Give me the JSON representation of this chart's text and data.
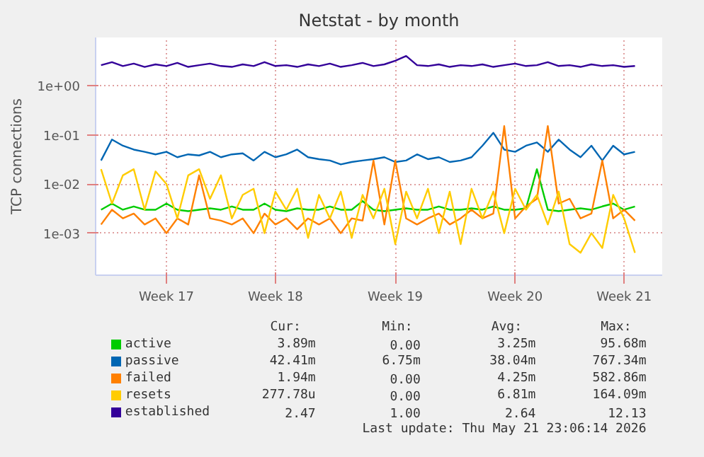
{
  "chart_data": {
    "type": "line",
    "title": "Netstat - by month",
    "ylabel": "TCP connections",
    "log": "y",
    "grid": true,
    "legend": "bottom",
    "categories": [
      null,
      null,
      null,
      null,
      null,
      null,
      "Week 17",
      null,
      null,
      null,
      null,
      null,
      null,
      null,
      null,
      null,
      "Week 18",
      null,
      null,
      null,
      null,
      null,
      null,
      null,
      null,
      null,
      null,
      "Week 19",
      null,
      null,
      null,
      null,
      null,
      null,
      null,
      null,
      null,
      null,
      "Week 20",
      null,
      null,
      null,
      null,
      null,
      null,
      null,
      null,
      null,
      "Week 21",
      null
    ],
    "ylim": [
      0.00014,
      9.5
    ],
    "yticks": [
      {
        "value": 0.001,
        "label": "1e-03"
      },
      {
        "value": 0.01,
        "label": "1e-02"
      },
      {
        "value": 0.1,
        "label": "1e-01"
      },
      {
        "value": 1,
        "label": "1e+00"
      }
    ],
    "series": [
      {
        "name": "active",
        "color": "#00cc00",
        "values": [
          0.003,
          0.004,
          0.003,
          0.0035,
          0.003,
          0.003,
          0.004,
          0.003,
          0.0028,
          0.003,
          0.0032,
          0.003,
          0.0035,
          0.003,
          0.003,
          0.004,
          0.003,
          0.0028,
          0.0032,
          0.003,
          0.003,
          0.0035,
          0.003,
          0.003,
          0.0045,
          0.003,
          0.0028,
          0.003,
          0.0032,
          0.003,
          0.003,
          0.0035,
          0.003,
          0.003,
          0.0032,
          0.003,
          0.0035,
          0.003,
          0.003,
          0.0032,
          0.02,
          0.003,
          0.0028,
          0.003,
          0.0032,
          0.003,
          0.0035,
          0.004,
          0.003,
          0.0035
        ]
      },
      {
        "name": "passive",
        "color": "#0066b3",
        "values": [
          0.03,
          0.08,
          0.06,
          0.05,
          0.045,
          0.04,
          0.045,
          0.035,
          0.04,
          0.038,
          0.045,
          0.035,
          0.04,
          0.042,
          0.03,
          0.045,
          0.035,
          0.04,
          0.05,
          0.035,
          0.032,
          0.03,
          0.025,
          0.028,
          0.03,
          0.032,
          0.035,
          0.028,
          0.03,
          0.04,
          0.032,
          0.035,
          0.028,
          0.03,
          0.035,
          0.06,
          0.11,
          0.05,
          0.045,
          0.06,
          0.07,
          0.045,
          0.08,
          0.05,
          0.035,
          0.06,
          0.03,
          0.06,
          0.04,
          0.045
        ]
      },
      {
        "name": "failed",
        "color": "#ff8000",
        "values": [
          0.0015,
          0.003,
          0.002,
          0.0025,
          0.0015,
          0.002,
          0.001,
          0.002,
          0.0015,
          0.015,
          0.002,
          0.0018,
          0.0015,
          0.002,
          0.001,
          0.0025,
          0.0015,
          0.002,
          0.0012,
          0.002,
          0.0015,
          0.002,
          0.001,
          0.002,
          0.0018,
          0.03,
          0.0015,
          0.03,
          0.002,
          0.0015,
          0.002,
          0.0025,
          0.0015,
          0.002,
          0.003,
          0.002,
          0.0025,
          0.15,
          0.002,
          0.0035,
          0.005,
          0.15,
          0.004,
          0.005,
          0.002,
          0.0025,
          0.03,
          0.002,
          0.003,
          0.0018
        ]
      },
      {
        "name": "resets",
        "color": "#ffcc00",
        "values": [
          0.02,
          0.004,
          0.015,
          0.02,
          0.003,
          0.018,
          0.01,
          0.002,
          0.015,
          0.02,
          0.005,
          0.015,
          0.002,
          0.006,
          0.008,
          0.001,
          0.007,
          0.003,
          0.008,
          0.0008,
          0.006,
          0.002,
          0.007,
          0.0008,
          0.006,
          0.002,
          0.008,
          0.0006,
          0.007,
          0.002,
          0.008,
          0.001,
          0.007,
          0.0006,
          0.008,
          0.002,
          0.007,
          0.001,
          0.008,
          0.003,
          0.006,
          0.0015,
          0.007,
          0.0006,
          0.0004,
          0.001,
          0.0005,
          0.006,
          0.002,
          0.0004
        ]
      },
      {
        "name": "established",
        "color": "#330099",
        "values": [
          2.6,
          3.0,
          2.5,
          2.8,
          2.4,
          2.7,
          2.5,
          2.9,
          2.4,
          2.6,
          2.8,
          2.5,
          2.4,
          2.7,
          2.5,
          3.0,
          2.5,
          2.6,
          2.4,
          2.7,
          2.5,
          2.8,
          2.4,
          2.6,
          2.9,
          2.5,
          2.7,
          3.2,
          4.0,
          2.6,
          2.5,
          2.7,
          2.4,
          2.6,
          2.5,
          2.7,
          2.4,
          2.6,
          2.8,
          2.5,
          2.6,
          3.0,
          2.5,
          2.6,
          2.4,
          2.7,
          2.5,
          2.6,
          2.4,
          2.5
        ]
      }
    ],
    "annotations": [
      "Cur:",
      "Min:",
      "Avg:",
      "Max:",
      "3.89m",
      "0.00",
      "3.25m",
      "95.68m",
      "42.41m",
      "6.75m",
      "38.04m",
      "767.34m",
      "1.94m",
      "0.00",
      "4.25m",
      "582.86m",
      "277.78u",
      "0.00",
      "6.81m",
      "164.09m",
      "2.47",
      "1.00",
      "2.64",
      "12.13",
      "Last update: Thu May 21 23:06:14 2026"
    ]
  }
}
